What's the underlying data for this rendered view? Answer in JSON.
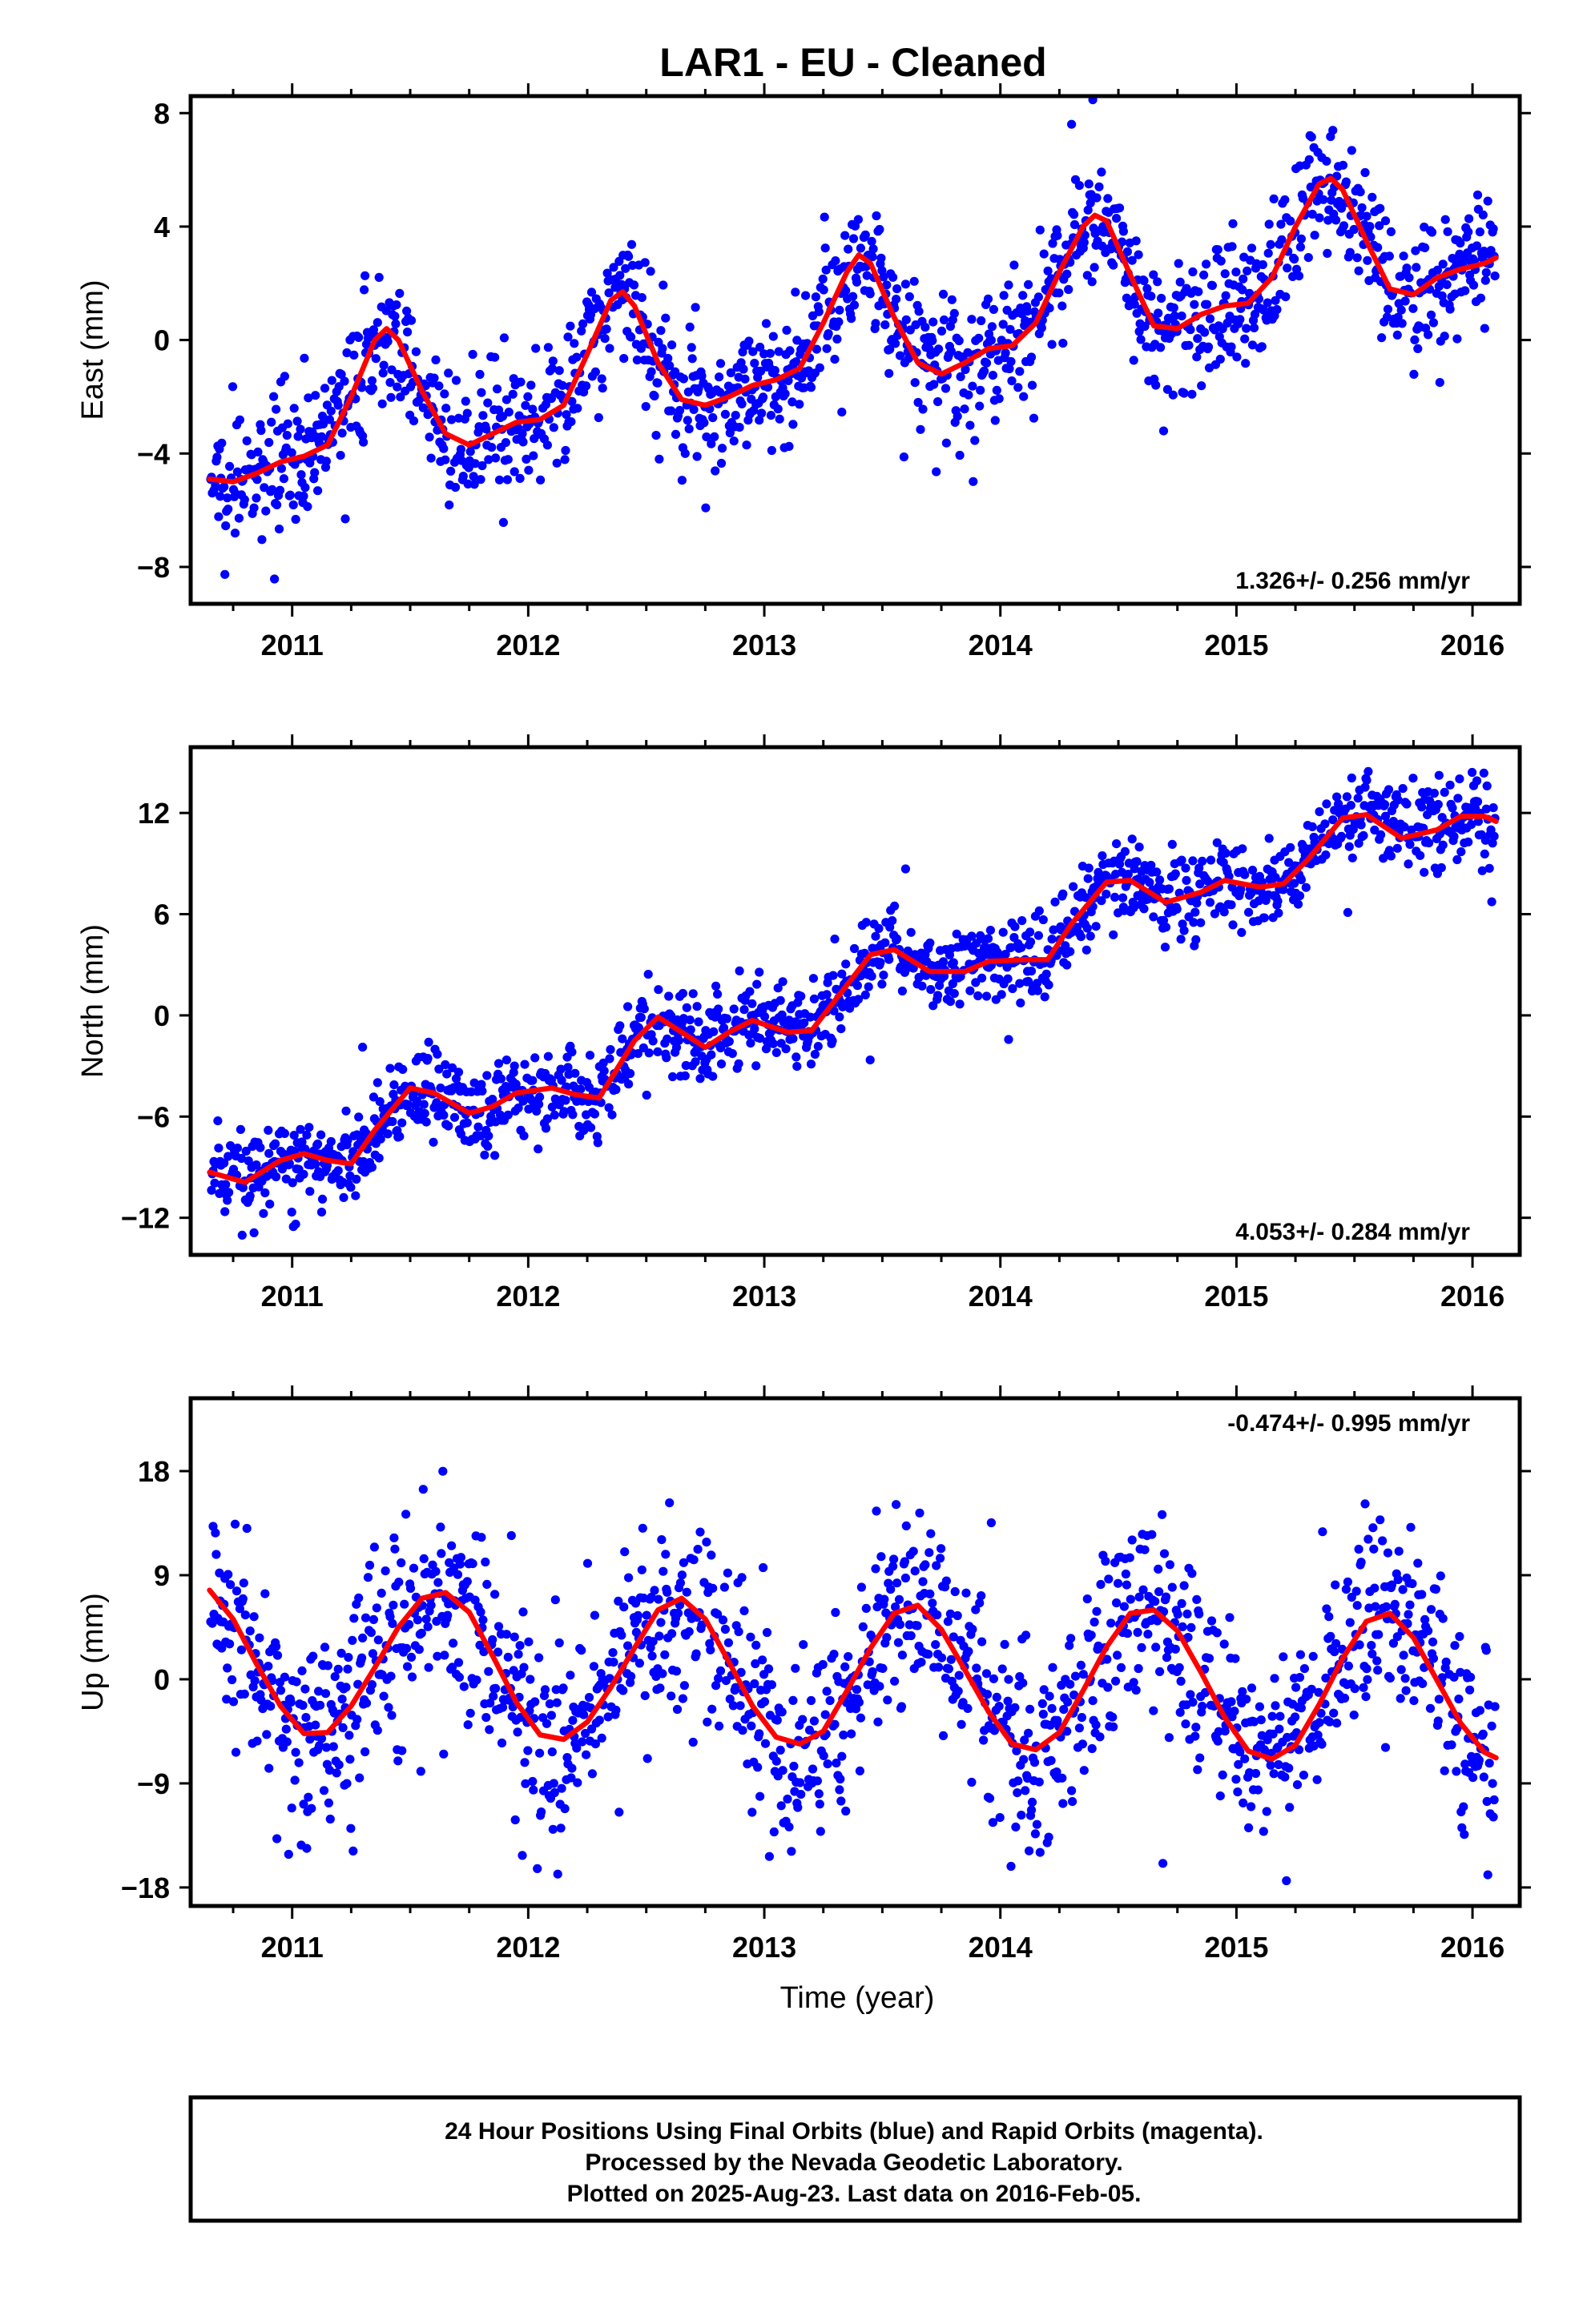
{
  "figure": {
    "title": "LAR1  - EU - Cleaned",
    "xlabel": "Time (year)",
    "footer": [
      "24 Hour Positions Using Final Orbits (blue) and Rapid Orbits (magenta).",
      "Processed by the Nevada Geodetic Laboratory.",
      "Plotted on 2025-Aug-23. Last data on 2016-Feb-05."
    ],
    "colors": {
      "points": "#0000ff",
      "fit": "#ff0000",
      "frame": "#000000"
    }
  },
  "chart_data": [
    {
      "type": "scatter",
      "ylabel": "East (mm)",
      "rate_label": "1.326+/- 0.256 mm/yr",
      "xlim": [
        2010.57,
        2016.2
      ],
      "ylim": [
        -9.3,
        8.6
      ],
      "yticks": [
        -8,
        -4,
        0,
        4,
        8
      ],
      "ytick_labels": [
        "−8",
        "−4",
        "0",
        "4",
        "8"
      ],
      "xticks": [
        2011,
        2012,
        2013,
        2014,
        2015,
        2016
      ],
      "xtick_labels": [
        "2011",
        "2012",
        "2013",
        "2014",
        "2015",
        "2016"
      ],
      "series": [
        {
          "kind": "fit",
          "x": [
            2010.65,
            2010.75,
            2010.85,
            2010.95,
            2011.05,
            2011.15,
            2011.25,
            2011.35,
            2011.4,
            2011.45,
            2011.55,
            2011.65,
            2011.75,
            2011.85,
            2011.95,
            2012.05,
            2012.15,
            2012.25,
            2012.35,
            2012.4,
            2012.45,
            2012.55,
            2012.65,
            2012.75,
            2012.85,
            2012.95,
            2013.05,
            2013.15,
            2013.25,
            2013.35,
            2013.4,
            2013.45,
            2013.55,
            2013.65,
            2013.75,
            2013.85,
            2013.95,
            2014.05,
            2014.15,
            2014.25,
            2014.35,
            2014.4,
            2014.45,
            2014.55,
            2014.65,
            2014.75,
            2014.85,
            2014.95,
            2015.05,
            2015.15,
            2015.25,
            2015.35,
            2015.4,
            2015.45,
            2015.55,
            2015.65,
            2015.75,
            2015.85,
            2015.95,
            2016.05,
            2016.1
          ],
          "y": [
            -4.9,
            -5.0,
            -4.7,
            -4.3,
            -4.1,
            -3.7,
            -2.0,
            0.0,
            0.4,
            0.0,
            -1.8,
            -3.3,
            -3.7,
            -3.3,
            -2.9,
            -2.8,
            -2.3,
            -0.5,
            1.4,
            1.7,
            1.2,
            -0.8,
            -2.1,
            -2.3,
            -2.0,
            -1.6,
            -1.4,
            -1.0,
            0.6,
            2.4,
            3.0,
            2.7,
            0.8,
            -0.8,
            -1.2,
            -0.8,
            -0.3,
            -0.2,
            0.6,
            2.4,
            4.0,
            4.4,
            4.2,
            2.3,
            0.5,
            0.4,
            0.9,
            1.2,
            1.3,
            2.2,
            4.0,
            5.5,
            5.7,
            5.3,
            3.5,
            1.8,
            1.6,
            2.2,
            2.5,
            2.7,
            2.9
          ]
        }
      ]
    },
    {
      "type": "scatter",
      "ylabel": "North (mm)",
      "rate_label": "4.053+/- 0.284 mm/yr",
      "xlim": [
        2010.57,
        2016.2
      ],
      "ylim": [
        -14.2,
        15.9
      ],
      "yticks": [
        -12,
        -6,
        0,
        6,
        12
      ],
      "ytick_labels": [
        "−12",
        "−6",
        "0",
        "6",
        "12"
      ],
      "xticks": [
        2011,
        2012,
        2013,
        2014,
        2015,
        2016
      ],
      "xtick_labels": [
        "2011",
        "2012",
        "2013",
        "2014",
        "2015",
        "2016"
      ],
      "series": [
        {
          "kind": "fit",
          "x": [
            2010.65,
            2010.8,
            2010.95,
            2011.05,
            2011.15,
            2011.25,
            2011.35,
            2011.5,
            2011.6,
            2011.75,
            2011.85,
            2011.95,
            2012.1,
            2012.2,
            2012.3,
            2012.45,
            2012.55,
            2012.75,
            2012.85,
            2012.95,
            2013.1,
            2013.2,
            2013.3,
            2013.45,
            2013.55,
            2013.7,
            2013.85,
            2013.95,
            2014.1,
            2014.2,
            2014.3,
            2014.45,
            2014.55,
            2014.7,
            2014.85,
            2014.95,
            2015.1,
            2015.2,
            2015.3,
            2015.45,
            2015.55,
            2015.7,
            2015.85,
            2015.95,
            2016.05,
            2016.1
          ],
          "y": [
            -9.3,
            -9.9,
            -8.6,
            -8.2,
            -8.6,
            -8.8,
            -6.8,
            -4.3,
            -4.6,
            -5.8,
            -5.4,
            -4.6,
            -4.3,
            -4.7,
            -4.9,
            -1.5,
            -0.1,
            -1.9,
            -1.0,
            -0.3,
            -1.0,
            -0.9,
            0.9,
            3.6,
            3.9,
            2.6,
            2.6,
            3.2,
            3.3,
            3.3,
            5.4,
            7.9,
            8.0,
            6.7,
            7.3,
            8.0,
            7.6,
            7.8,
            9.2,
            11.7,
            11.9,
            10.5,
            11.0,
            11.8,
            11.8,
            11.5
          ]
        }
      ]
    },
    {
      "type": "scatter",
      "ylabel": "Up (mm)",
      "rate_label": "-0.474+/- 0.995 mm/yr",
      "xlim": [
        2010.57,
        2016.2
      ],
      "ylim": [
        -19.6,
        24.3
      ],
      "yticks": [
        -18,
        -9,
        0,
        9,
        18
      ],
      "ytick_labels": [
        "−18",
        "−9",
        "0",
        "9",
        "18"
      ],
      "xticks": [
        2011,
        2012,
        2013,
        2014,
        2015,
        2016
      ],
      "xtick_labels": [
        "2011",
        "2012",
        "2013",
        "2014",
        "2015",
        "2016"
      ],
      "series": [
        {
          "kind": "fit",
          "x": [
            2010.65,
            2010.75,
            2010.85,
            2010.95,
            2011.05,
            2011.15,
            2011.25,
            2011.35,
            2011.45,
            2011.55,
            2011.65,
            2011.75,
            2011.85,
            2011.95,
            2012.05,
            2012.15,
            2012.25,
            2012.35,
            2012.45,
            2012.55,
            2012.65,
            2012.75,
            2012.85,
            2012.95,
            2013.05,
            2013.15,
            2013.25,
            2013.35,
            2013.45,
            2013.55,
            2013.65,
            2013.75,
            2013.85,
            2013.95,
            2014.05,
            2014.15,
            2014.25,
            2014.35,
            2014.45,
            2014.55,
            2014.65,
            2014.75,
            2014.85,
            2014.95,
            2015.05,
            2015.15,
            2015.25,
            2015.35,
            2015.45,
            2015.55,
            2015.65,
            2015.75,
            2015.85,
            2015.95,
            2016.05,
            2016.1
          ],
          "y": [
            7.7,
            5.2,
            1.3,
            -2.3,
            -4.7,
            -4.6,
            -2.3,
            1.0,
            4.5,
            7.0,
            7.5,
            5.8,
            2.0,
            -2.0,
            -4.8,
            -5.2,
            -3.7,
            -0.7,
            2.7,
            6.0,
            7.0,
            5.2,
            1.5,
            -2.3,
            -5.0,
            -5.6,
            -4.5,
            -1.0,
            2.7,
            5.7,
            6.4,
            4.3,
            0.8,
            -2.8,
            -5.6,
            -6.1,
            -4.6,
            -1.0,
            2.8,
            5.7,
            6.0,
            4.2,
            0.6,
            -3.3,
            -6.2,
            -6.9,
            -5.7,
            -2.2,
            1.8,
            5.0,
            5.7,
            3.6,
            -0.1,
            -3.8,
            -6.3,
            -6.8
          ]
        }
      ]
    }
  ]
}
